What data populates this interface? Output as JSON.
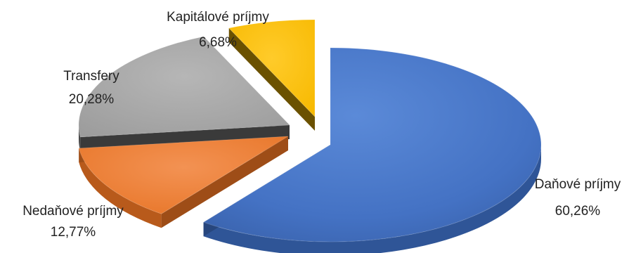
{
  "chart_data": {
    "type": "pie",
    "title": "",
    "style": "3d-exploded",
    "legend": "none",
    "slices": [
      {
        "name": "Daňové príjmy",
        "value": 60.26,
        "pct_label": "60,26%",
        "color": "#4472C4"
      },
      {
        "name": "Nedaňové príjmy",
        "value": 12.77,
        "pct_label": "12,77%",
        "color": "#ED7D31"
      },
      {
        "name": "Transfery",
        "value": 20.28,
        "pct_label": "20,28%",
        "color": "#A5A5A5"
      },
      {
        "name": "Kapitálové príjmy",
        "value": 6.68,
        "pct_label": "6,68%",
        "color": "#FFC000"
      }
    ]
  }
}
